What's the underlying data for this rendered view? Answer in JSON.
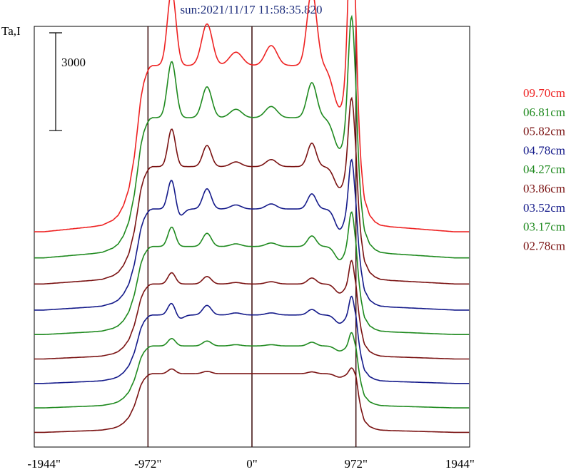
{
  "chart_data": {
    "type": "line",
    "title": "sun:2021/11/17 11:58:35.820",
    "ylabel": "Ta,I",
    "xlabel": "",
    "scale_bar_label": "3000",
    "scale_bar_value": 3000,
    "xlim": [
      -2035,
      2035
    ],
    "x_ticks": [
      {
        "value": -1944,
        "label": "-1944\""
      },
      {
        "value": -972,
        "label": "-972\""
      },
      {
        "value": 0,
        "label": "0\""
      },
      {
        "value": 972,
        "label": "972\""
      },
      {
        "value": 1944,
        "label": "1944\""
      }
    ],
    "vlines": [
      -972,
      0,
      972
    ],
    "profile_x": [
      -2035,
      -1950,
      -1800,
      -1650,
      -1500,
      -1400,
      -1300,
      -1250,
      -1200,
      -1150,
      -1100,
      -1070,
      -1040,
      -1010,
      -985,
      -972,
      -955,
      -930,
      -900,
      -870,
      -840,
      -800,
      -760,
      -700,
      -650,
      -600,
      -550,
      -500,
      -450,
      -400,
      -300,
      -200,
      -100,
      0,
      100,
      200,
      300,
      400,
      450,
      500,
      550,
      600,
      650,
      700,
      750,
      800,
      850,
      880,
      920,
      950,
      972,
      985,
      1000,
      1020,
      1050,
      1100,
      1150,
      1200,
      1300,
      1500,
      1700,
      1900,
      2035
    ],
    "profile_shape": [
      0,
      0,
      0.01,
      0.02,
      0.03,
      0.04,
      0.07,
      0.1,
      0.16,
      0.26,
      0.45,
      0.62,
      0.8,
      0.9,
      0.95,
      0.97,
      0.99,
      1.0,
      1.0,
      1.0,
      1.0,
      1.0,
      1.0,
      1.0,
      1.0,
      1.0,
      1.0,
      1.0,
      1.0,
      1.0,
      1.0,
      1.0,
      1.0,
      1.0,
      1.0,
      1.0,
      1.0,
      1.0,
      1.0,
      1.0,
      1.0,
      1.0,
      1.0,
      1.0,
      1.0,
      1.0,
      1.0,
      1.0,
      1.0,
      1.0,
      0.95,
      0.8,
      0.6,
      0.4,
      0.2,
      0.1,
      0.06,
      0.04,
      0.03,
      0.02,
      0.01,
      0,
      0
    ],
    "series": [
      {
        "name": "09.70cm",
        "color": "#ee2222",
        "baseline": 6300,
        "amplitude": 5100,
        "bumps": [
          [
            -750,
            0.45,
            40
          ],
          [
            -420,
            0.25,
            50
          ],
          [
            -150,
            0.08,
            60
          ],
          [
            180,
            0.12,
            55
          ],
          [
            560,
            0.45,
            45
          ],
          [
            930,
            0.95,
            30
          ]
        ],
        "dips": [
          [
            820,
            0.25,
            60
          ]
        ]
      },
      {
        "name": "06.81cm",
        "color": "#1f8a1f",
        "baseline": 5500,
        "amplitude": 4300,
        "bumps": [
          [
            -750,
            0.4,
            40
          ],
          [
            -420,
            0.22,
            45
          ],
          [
            -150,
            0.06,
            55
          ],
          [
            180,
            0.08,
            55
          ],
          [
            560,
            0.25,
            45
          ],
          [
            930,
            0.75,
            30
          ]
        ],
        "dips": [
          [
            820,
            0.22,
            55
          ]
        ]
      },
      {
        "name": "05.82cm",
        "color": "#7a1212",
        "baseline": 4700,
        "amplitude": 3600,
        "bumps": [
          [
            -750,
            0.32,
            35
          ],
          [
            -420,
            0.18,
            40
          ],
          [
            -150,
            0.04,
            50
          ],
          [
            180,
            0.06,
            50
          ],
          [
            560,
            0.2,
            40
          ],
          [
            930,
            0.6,
            28
          ]
        ],
        "dips": [
          [
            820,
            0.18,
            50
          ]
        ]
      },
      {
        "name": "04.78cm",
        "color": "#141a8a",
        "baseline": 3900,
        "amplitude": 3100,
        "bumps": [
          [
            -750,
            0.3,
            35
          ],
          [
            -420,
            0.2,
            40
          ],
          [
            -150,
            0.04,
            50
          ],
          [
            180,
            0.05,
            50
          ],
          [
            560,
            0.15,
            40
          ],
          [
            930,
            0.5,
            25
          ]
        ],
        "dips": [
          [
            820,
            0.2,
            45
          ],
          [
            -680,
            0.08,
            40
          ]
        ]
      },
      {
        "name": "04.27cm",
        "color": "#1f8a1f",
        "baseline": 3150,
        "amplitude": 2700,
        "bumps": [
          [
            -750,
            0.22,
            35
          ],
          [
            -420,
            0.15,
            40
          ],
          [
            -150,
            0.03,
            50
          ],
          [
            180,
            0.04,
            50
          ],
          [
            560,
            0.12,
            40
          ],
          [
            930,
            0.4,
            25
          ]
        ],
        "dips": [
          [
            820,
            0.15,
            45
          ]
        ]
      },
      {
        "name": "03.86cm",
        "color": "#7a1212",
        "baseline": 2400,
        "amplitude": 2300,
        "bumps": [
          [
            -750,
            0.15,
            35
          ],
          [
            -420,
            0.1,
            40
          ],
          [
            -150,
            0.02,
            50
          ],
          [
            180,
            0.03,
            50
          ],
          [
            560,
            0.08,
            40
          ],
          [
            930,
            0.32,
            22
          ]
        ],
        "dips": [
          [
            820,
            0.12,
            45
          ]
        ]
      },
      {
        "name": "03.52cm",
        "color": "#141a8a",
        "baseline": 1650,
        "amplitude": 2100,
        "bumps": [
          [
            -750,
            0.18,
            35
          ],
          [
            -420,
            0.14,
            40
          ],
          [
            -150,
            0.03,
            50
          ],
          [
            180,
            0.03,
            50
          ],
          [
            560,
            0.08,
            40
          ],
          [
            930,
            0.28,
            22
          ]
        ],
        "dips": [
          [
            820,
            0.12,
            45
          ],
          [
            -680,
            0.06,
            40
          ]
        ]
      },
      {
        "name": "03.17cm",
        "color": "#1f8a1f",
        "baseline": 900,
        "amplitude": 1900,
        "bumps": [
          [
            -750,
            0.12,
            35
          ],
          [
            -420,
            0.08,
            40
          ],
          [
            -150,
            0.02,
            50
          ],
          [
            180,
            0.02,
            50
          ],
          [
            560,
            0.06,
            40
          ],
          [
            930,
            0.22,
            22
          ]
        ],
        "dips": [
          [
            820,
            0.08,
            45
          ]
        ]
      },
      {
        "name": "02.78cm",
        "color": "#7a1212",
        "baseline": 150,
        "amplitude": 1800,
        "bumps": [
          [
            -750,
            0.08,
            35
          ],
          [
            -420,
            0.04,
            40
          ],
          [
            560,
            0.03,
            40
          ],
          [
            930,
            0.1,
            22
          ]
        ],
        "dips": [
          [
            820,
            0.06,
            45
          ]
        ]
      }
    ],
    "ylim": [
      -300,
      12600
    ],
    "legend_position": "right"
  }
}
